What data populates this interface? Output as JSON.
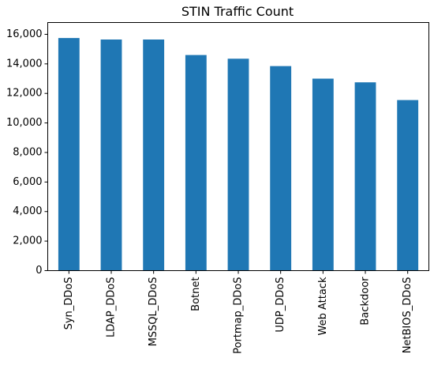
{
  "chart_data": {
    "type": "bar",
    "title": "STIN Traffic Count",
    "xlabel": "",
    "ylabel": "",
    "categories": [
      "Syn_DDoS",
      "LDAP_DDoS",
      "MSSQL_DDoS",
      "Botnet",
      "Portmap_DDoS",
      "UDP_DDoS",
      "Web Attack",
      "Backdoor",
      "NetBIOS_DDoS"
    ],
    "values": [
      15750,
      15650,
      15650,
      14600,
      14350,
      13850,
      13000,
      12750,
      11550
    ],
    "ylim": [
      0,
      16800
    ],
    "yticks": [
      0,
      2000,
      4000,
      6000,
      8000,
      10000,
      12000,
      14000,
      16000
    ],
    "ytick_labels": [
      "0",
      "2,000",
      "4,000",
      "6,000",
      "8,000",
      "10,000",
      "12,000",
      "14,000",
      "16,000"
    ],
    "bar_color": "#1f77b4",
    "grid": false,
    "legend": "none"
  }
}
